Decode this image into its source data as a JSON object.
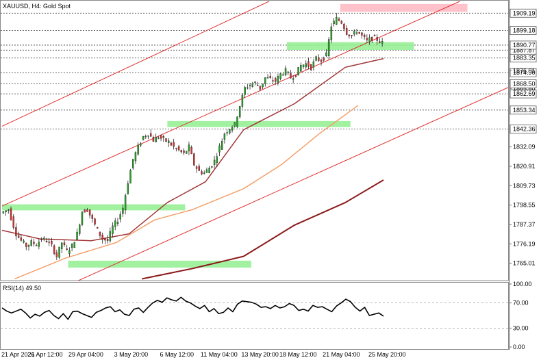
{
  "chart_data": {
    "type": "candlestick",
    "title": "XAUUSD, H4:  Gold Spot",
    "ylim": [
      1755.0,
      1916.0
    ],
    "y_ticks": [
      1765.01,
      1776.19,
      1787.37,
      1798.55,
      1809.73,
      1820.91,
      1832.09,
      1842.36,
      1853.34,
      1862.69,
      1865.6,
      1868.5,
      1874.9,
      1876.01,
      1883.35,
      1887.87,
      1890.77,
      1899.18,
      1909.19
    ],
    "y_tick_labels": [
      "1765.01",
      "1776.19",
      "1787.37",
      "1798.55",
      "1809.73",
      "1820.91",
      "1832.09",
      "1842.36",
      "1853.34",
      "1862.69",
      "1865.60",
      "1868.50",
      "1874.90",
      "1876.01",
      "1883.35",
      "1887.87",
      "1890.77",
      "1899.18",
      "1909.19"
    ],
    "boxed_levels": [
      1909.19,
      1899.18,
      1890.77,
      1887.87,
      1868.5,
      1862.69,
      1853.34,
      1842.36,
      1883.35,
      1874.9
    ],
    "dashed_levels": [
      1909.19,
      1899.18,
      1890.77,
      1887.87,
      1883.35,
      1874.9,
      1868.5,
      1862.69,
      1853.34,
      1842.36
    ],
    "x_labels": [
      "21 Apr 2021",
      "26 Apr 12:00",
      "29 Apr 04:00",
      "3 May 20:00",
      "6 May 12:00",
      "11 May 04:00",
      "13 May 20:00",
      "18 May 12:00",
      "21 May 04:00",
      "25 May 20:00"
    ],
    "close_path": [
      [
        0,
        1794
      ],
      [
        3,
        1796
      ],
      [
        6,
        1782
      ],
      [
        8,
        1778
      ],
      [
        10,
        1775
      ],
      [
        12,
        1777
      ],
      [
        14,
        1776
      ],
      [
        16,
        1779
      ],
      [
        18,
        1778
      ],
      [
        20,
        1775
      ],
      [
        22,
        1769
      ],
      [
        24,
        1777
      ],
      [
        26,
        1772
      ],
      [
        28,
        1775
      ],
      [
        30,
        1782
      ],
      [
        32,
        1795
      ],
      [
        34,
        1796
      ],
      [
        36,
        1790
      ],
      [
        38,
        1784
      ],
      [
        40,
        1779
      ],
      [
        42,
        1778
      ],
      [
        44,
        1786
      ],
      [
        46,
        1790
      ],
      [
        48,
        1797
      ],
      [
        50,
        1812
      ],
      [
        52,
        1825
      ],
      [
        54,
        1832
      ],
      [
        56,
        1838
      ],
      [
        58,
        1840
      ],
      [
        60,
        1836
      ],
      [
        62,
        1838
      ],
      [
        64,
        1836
      ],
      [
        66,
        1835
      ],
      [
        68,
        1832
      ],
      [
        70,
        1830
      ],
      [
        72,
        1828
      ],
      [
        74,
        1832
      ],
      [
        76,
        1822
      ],
      [
        78,
        1818
      ],
      [
        80,
        1817
      ],
      [
        82,
        1820
      ],
      [
        84,
        1824
      ],
      [
        86,
        1832
      ],
      [
        88,
        1840
      ],
      [
        90,
        1843
      ],
      [
        92,
        1845
      ],
      [
        94,
        1856
      ],
      [
        96,
        1866
      ],
      [
        98,
        1868
      ],
      [
        100,
        1869
      ],
      [
        102,
        1866
      ],
      [
        104,
        1872
      ],
      [
        106,
        1871
      ],
      [
        108,
        1870
      ],
      [
        110,
        1874
      ],
      [
        112,
        1876
      ],
      [
        114,
        1872
      ],
      [
        116,
        1874
      ],
      [
        118,
        1879
      ],
      [
        120,
        1880
      ],
      [
        122,
        1878
      ],
      [
        124,
        1883
      ],
      [
        126,
        1882
      ],
      [
        128,
        1885
      ],
      [
        130,
        1902
      ],
      [
        132,
        1906
      ],
      [
        134,
        1904
      ],
      [
        136,
        1898
      ],
      [
        138,
        1896
      ],
      [
        140,
        1899
      ],
      [
        142,
        1896
      ],
      [
        144,
        1893
      ],
      [
        146,
        1895
      ],
      [
        148,
        1894
      ],
      [
        150,
        1892
      ]
    ],
    "indicator": {
      "name": "RSI(14) 49.50",
      "value": 49.5,
      "ylim": [
        0,
        100
      ],
      "levels": [
        0.0,
        30.0,
        70.0,
        100.0
      ],
      "level_labels": [
        "0.00",
        "30.00",
        "70.00",
        "100.00"
      ],
      "series": [
        62,
        57,
        54,
        57,
        60,
        54,
        46,
        52,
        49,
        55,
        58,
        50,
        45,
        53,
        44,
        56,
        57,
        53,
        50,
        47,
        55,
        58,
        62,
        64,
        56,
        59,
        52,
        50,
        60,
        62,
        55,
        63,
        70,
        74,
        71,
        78,
        75,
        73,
        79,
        73,
        70,
        65,
        61,
        66,
        56,
        61,
        53,
        55,
        62,
        56,
        68,
        73,
        72,
        71,
        68,
        63,
        64,
        61,
        66,
        62,
        64,
        69,
        66,
        58,
        60,
        57,
        66,
        63,
        64,
        60,
        56,
        65,
        70,
        76,
        72,
        63,
        57,
        63,
        50,
        52,
        54,
        49
      ]
    },
    "moving_averages": [
      {
        "color": "#a13636",
        "points": [
          [
            0,
            1784
          ],
          [
            15,
            1779
          ],
          [
            35,
            1778
          ],
          [
            50,
            1782
          ],
          [
            65,
            1800
          ],
          [
            80,
            1812
          ],
          [
            95,
            1842
          ],
          [
            115,
            1857
          ],
          [
            135,
            1878
          ],
          [
            150,
            1883
          ]
        ]
      },
      {
        "color": "#f4a06a",
        "points": [
          [
            5,
            1756
          ],
          [
            25,
            1768
          ],
          [
            45,
            1777
          ],
          [
            60,
            1790
          ],
          [
            75,
            1796
          ],
          [
            95,
            1808
          ],
          [
            110,
            1822
          ],
          [
            125,
            1840
          ],
          [
            140,
            1856
          ]
        ]
      },
      {
        "color": "#8b1a1a",
        "points": [
          [
            55,
            1756
          ],
          [
            75,
            1762
          ],
          [
            95,
            1769
          ],
          [
            115,
            1787
          ],
          [
            135,
            1800
          ],
          [
            150,
            1813
          ]
        ]
      }
    ],
    "trend_lines": [
      {
        "color": "#e03030",
        "from": [
          0,
          1844
        ],
        "to": [
          105,
          1916
        ]
      },
      {
        "color": "#e03030",
        "from": [
          0,
          1798
        ],
        "to": [
          180,
          1916
        ]
      },
      {
        "color": "#e03030",
        "from": [
          30,
          1755
        ],
        "to": [
          200,
          1867
        ]
      }
    ],
    "zones": [
      {
        "color": "#90ee90",
        "x_from": 0,
        "x_to": 72,
        "y_from": 1795.5,
        "y_to": 1799.0
      },
      {
        "color": "#90ee90",
        "x_from": 26,
        "x_to": 98,
        "y_from": 1762.5,
        "y_to": 1766.5
      },
      {
        "color": "#90ee90",
        "x_from": 65,
        "x_to": 137,
        "y_from": 1843.5,
        "y_to": 1847.0
      },
      {
        "color": "#90ee90",
        "x_from": 112,
        "x_to": 162,
        "y_from": 1888.0,
        "y_to": 1892.5
      },
      {
        "color": "#ffb6c1",
        "x_from": 133,
        "x_to": 183,
        "y_from": 1910.0,
        "y_to": 1914.5
      }
    ],
    "colors": {
      "up": "#26a625",
      "down": "#e03030",
      "wick": "#222222",
      "grid": "#b0b0b0"
    }
  }
}
